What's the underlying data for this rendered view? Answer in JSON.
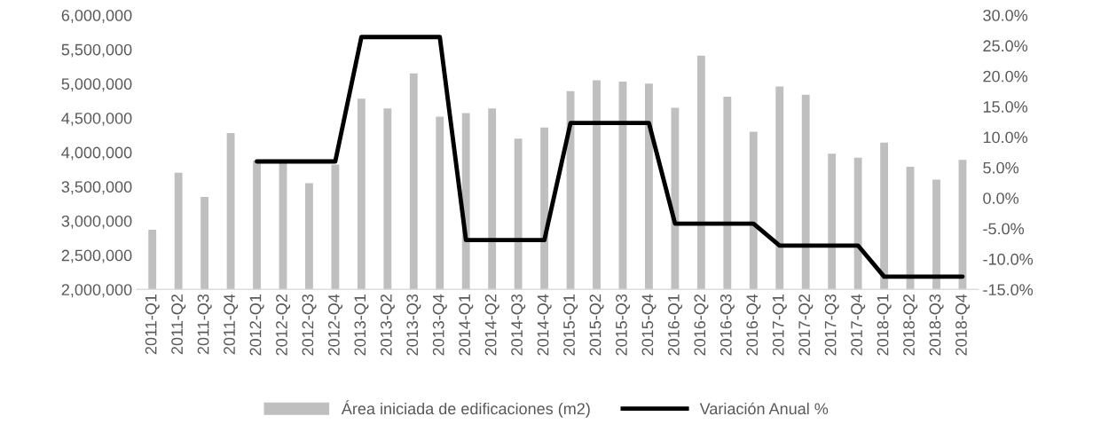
{
  "chart_data": {
    "type": "bar",
    "categories": [
      "2011-Q1",
      "2011-Q2",
      "2011-Q3",
      "2011-Q4",
      "2012-Q1",
      "2012-Q2",
      "2012-Q3",
      "2012-Q4",
      "2013-Q1",
      "2013-Q2",
      "2013-Q3",
      "2013-Q4",
      "2014-Q1",
      "2014-Q2",
      "2014-Q3",
      "2014-Q4",
      "2015-Q1",
      "2015-Q2",
      "2015-Q3",
      "2015-Q4",
      "2016-Q1",
      "2016-Q2",
      "2016-Q3",
      "2016-Q4",
      "2017-Q1",
      "2017-Q2",
      "2017-Q3",
      "2017-Q4",
      "2018-Q1",
      "2018-Q2",
      "2018-Q3",
      "2018-Q4"
    ],
    "series": [
      {
        "name": "Área iniciada de edificaciones (m2)",
        "color": "#bfbfbf",
        "values": [
          2870000,
          3700000,
          3350000,
          4280000,
          3880000,
          3840000,
          3550000,
          3820000,
          4780000,
          4640000,
          5150000,
          4520000,
          4570000,
          4640000,
          4200000,
          4360000,
          4890000,
          5050000,
          5030000,
          5000000,
          4650000,
          5410000,
          4810000,
          4300000,
          4960000,
          4840000,
          3980000,
          3920000,
          4140000,
          3790000,
          3600000,
          3890000
        ]
      },
      {
        "name": "Variación Anual %",
        "type": "line",
        "axis": "y2",
        "color": "#000000",
        "values": [
          null,
          null,
          null,
          null,
          6.0,
          6.0,
          6.0,
          6.0,
          26.4,
          26.4,
          26.4,
          26.4,
          -6.9,
          -6.9,
          -6.9,
          -6.9,
          12.3,
          12.3,
          12.3,
          12.3,
          -4.2,
          -4.2,
          -4.2,
          -4.2,
          -7.8,
          -7.8,
          -7.8,
          -7.8,
          -12.9,
          -12.9,
          -12.9,
          -12.9
        ]
      }
    ],
    "ylim": [
      2000000,
      6000000
    ],
    "yticks": [
      {
        "value": 2000000,
        "label": "2,000,000"
      },
      {
        "value": 2500000,
        "label": "2,500,000"
      },
      {
        "value": 3000000,
        "label": "3,000,000"
      },
      {
        "value": 3500000,
        "label": "3,500,000"
      },
      {
        "value": 4000000,
        "label": "4,000,000"
      },
      {
        "value": 4500000,
        "label": "4,500,000"
      },
      {
        "value": 5000000,
        "label": "5,000,000"
      },
      {
        "value": 5500000,
        "label": "5,500,000"
      },
      {
        "value": 6000000,
        "label": "6,000,000"
      }
    ],
    "y2lim": [
      -15,
      30
    ],
    "y2ticks": [
      {
        "value": -15,
        "label": "-15.0%"
      },
      {
        "value": -10,
        "label": "-10.0%"
      },
      {
        "value": -5,
        "label": "-5.0%"
      },
      {
        "value": 0,
        "label": "0.0%"
      },
      {
        "value": 5,
        "label": "5.0%"
      },
      {
        "value": 10,
        "label": "10.0%"
      },
      {
        "value": 15,
        "label": "15.0%"
      },
      {
        "value": 20,
        "label": "20.0%"
      },
      {
        "value": 25,
        "label": "25.0%"
      },
      {
        "value": 30,
        "label": "30.0%"
      }
    ],
    "legend": "bottom",
    "grid": false
  }
}
